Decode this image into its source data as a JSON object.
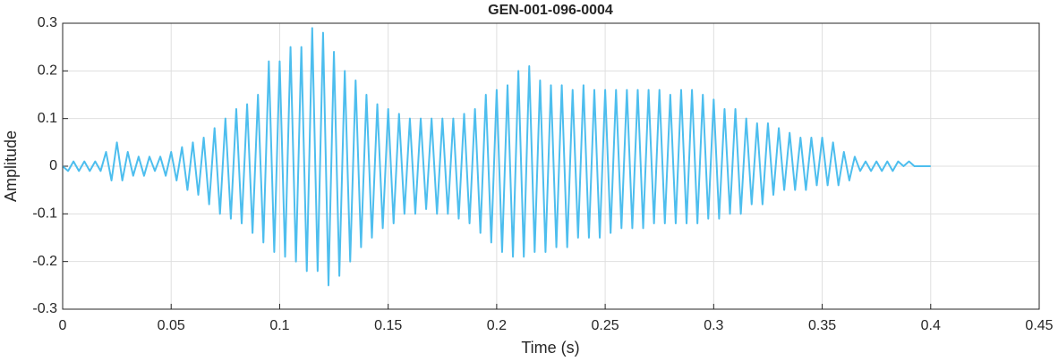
{
  "chart_data": {
    "type": "line",
    "title": "GEN-001-096-0004",
    "xlabel": "Time (s)",
    "ylabel": "Amplitude",
    "xlim": [
      0,
      0.45
    ],
    "ylim": [
      -0.3,
      0.3
    ],
    "xticks": [
      0,
      0.05,
      0.1,
      0.15,
      0.2,
      0.25,
      0.3,
      0.35,
      0.4,
      0.45
    ],
    "yticks": [
      -0.3,
      -0.2,
      -0.1,
      0,
      0.1,
      0.2,
      0.3
    ],
    "grid": true,
    "x": [
      0,
      0.0025,
      0.005,
      0.0075,
      0.01,
      0.0125,
      0.015,
      0.0175,
      0.02,
      0.0225,
      0.025,
      0.0275,
      0.03,
      0.0325,
      0.035,
      0.0375,
      0.04,
      0.0425,
      0.045,
      0.0475,
      0.05,
      0.0525,
      0.055,
      0.0575,
      0.06,
      0.0625,
      0.065,
      0.0675,
      0.07,
      0.0725,
      0.075,
      0.0775,
      0.08,
      0.0825,
      0.085,
      0.0875,
      0.09,
      0.0925,
      0.095,
      0.0975,
      0.1,
      0.1025,
      0.105,
      0.1075,
      0.11,
      0.1125,
      0.115,
      0.1175,
      0.12,
      0.1225,
      0.125,
      0.1275,
      0.13,
      0.1325,
      0.135,
      0.1375,
      0.14,
      0.1425,
      0.145,
      0.1475,
      0.15,
      0.1525,
      0.155,
      0.1575,
      0.16,
      0.1625,
      0.165,
      0.1675,
      0.17,
      0.1725,
      0.175,
      0.1775,
      0.18,
      0.1825,
      0.185,
      0.1875,
      0.19,
      0.1925,
      0.195,
      0.1975,
      0.2,
      0.2025,
      0.205,
      0.2075,
      0.21,
      0.2125,
      0.215,
      0.2175,
      0.22,
      0.2225,
      0.225,
      0.2275,
      0.23,
      0.2325,
      0.235,
      0.2375,
      0.24,
      0.2425,
      0.245,
      0.2475,
      0.25,
      0.2525,
      0.255,
      0.2575,
      0.26,
      0.2625,
      0.265,
      0.2675,
      0.27,
      0.2725,
      0.275,
      0.2775,
      0.28,
      0.2825,
      0.285,
      0.2875,
      0.29,
      0.2925,
      0.295,
      0.2975,
      0.3,
      0.3025,
      0.305,
      0.3075,
      0.31,
      0.3125,
      0.315,
      0.3175,
      0.32,
      0.3225,
      0.325,
      0.3275,
      0.33,
      0.3325,
      0.335,
      0.3375,
      0.34,
      0.3425,
      0.345,
      0.3475,
      0.35,
      0.3525,
      0.355,
      0.3575,
      0.36,
      0.3625,
      0.365,
      0.3675,
      0.37,
      0.3725,
      0.375,
      0.3775,
      0.38,
      0.3825,
      0.385,
      0.3875,
      0.39,
      0.3925,
      0.395,
      0.3975,
      0.4
    ],
    "series": [
      {
        "color": "#4dbeee",
        "values": [
          0,
          -0.01,
          0.01,
          -0.01,
          0.01,
          -0.01,
          0.01,
          -0.01,
          0.03,
          -0.03,
          0.05,
          -0.03,
          0.03,
          -0.02,
          0.02,
          -0.02,
          0.02,
          -0.01,
          0.02,
          -0.02,
          0.03,
          -0.03,
          0.04,
          -0.05,
          0.05,
          -0.06,
          0.06,
          -0.08,
          0.08,
          -0.1,
          0.1,
          -0.11,
          0.12,
          -0.12,
          0.13,
          -0.14,
          0.15,
          -0.16,
          0.22,
          -0.18,
          0.22,
          -0.19,
          0.25,
          -0.2,
          0.25,
          -0.22,
          0.29,
          -0.22,
          0.28,
          -0.25,
          0.24,
          -0.23,
          0.2,
          -0.2,
          0.18,
          -0.17,
          0.15,
          -0.15,
          0.13,
          -0.13,
          0.12,
          -0.12,
          0.11,
          -0.1,
          0.1,
          -0.1,
          0.1,
          -0.09,
          0.1,
          -0.1,
          0.1,
          -0.1,
          0.1,
          -0.11,
          0.11,
          -0.12,
          0.12,
          -0.14,
          0.15,
          -0.16,
          0.16,
          -0.18,
          0.17,
          -0.19,
          0.2,
          -0.19,
          0.21,
          -0.18,
          0.18,
          -0.18,
          0.17,
          -0.17,
          0.17,
          -0.17,
          0.16,
          -0.15,
          0.17,
          -0.15,
          0.16,
          -0.15,
          0.16,
          -0.14,
          0.16,
          -0.13,
          0.16,
          -0.13,
          0.16,
          -0.13,
          0.16,
          -0.12,
          0.16,
          -0.12,
          0.15,
          -0.12,
          0.16,
          -0.12,
          0.16,
          -0.12,
          0.15,
          -0.11,
          0.14,
          -0.11,
          0.12,
          -0.1,
          0.12,
          -0.1,
          0.1,
          -0.08,
          0.09,
          -0.08,
          0.09,
          -0.06,
          0.08,
          -0.05,
          0.07,
          -0.05,
          0.06,
          -0.05,
          0.06,
          -0.04,
          0.06,
          -0.04,
          0.05,
          -0.04,
          0.03,
          -0.03,
          0.02,
          -0.01,
          0.01,
          -0.01,
          0.01,
          -0.01,
          0.01,
          -0.01,
          0.01,
          0,
          0.01,
          0,
          0,
          0,
          0
        ]
      }
    ]
  }
}
